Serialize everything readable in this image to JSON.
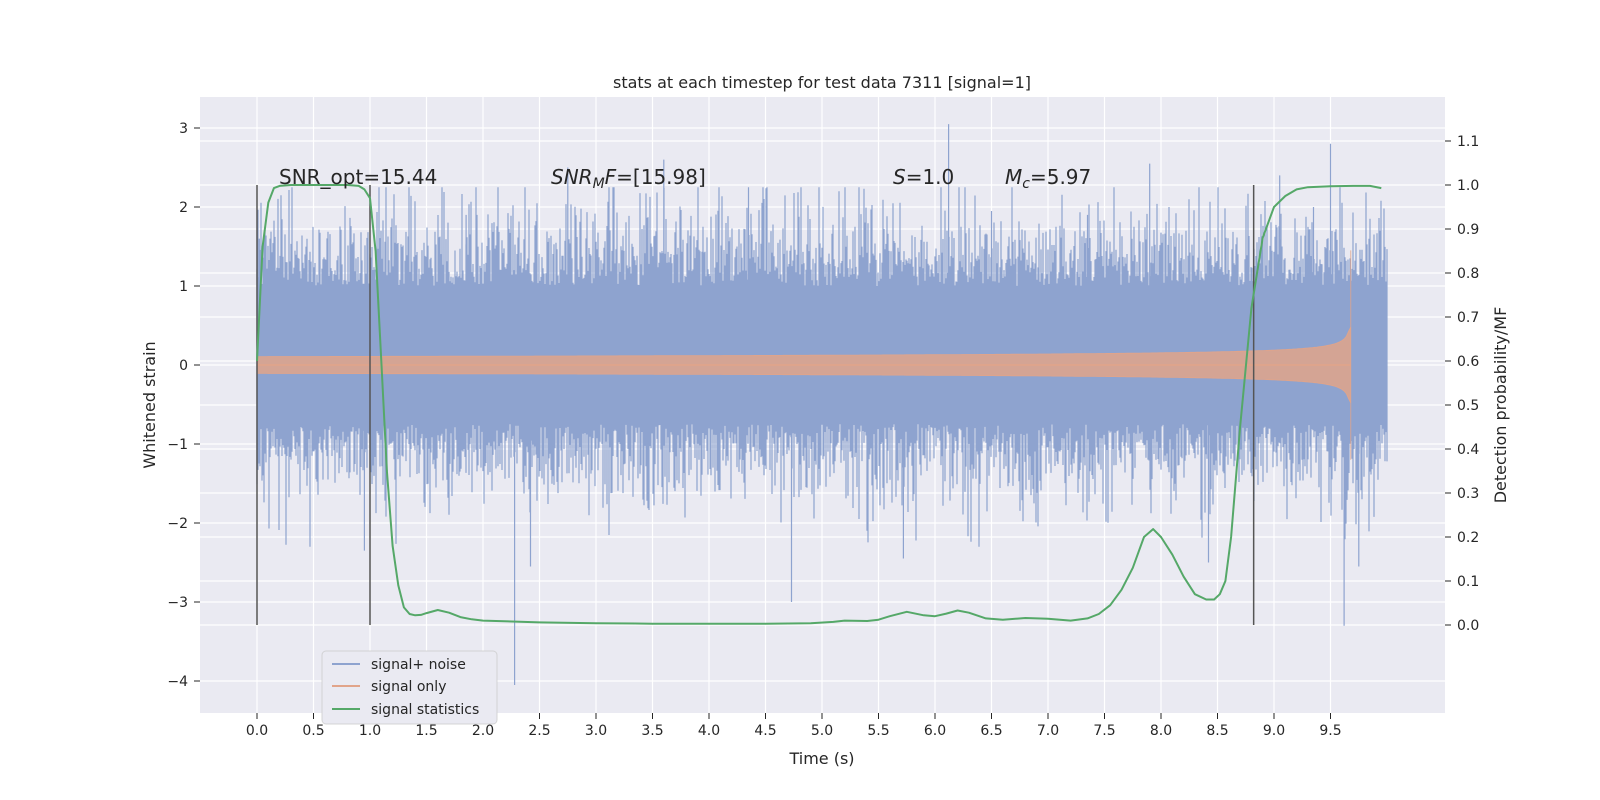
{
  "chart_data": {
    "type": "line",
    "title": "stats at each timestep for test data 7311 [signal=1]",
    "xlabel": "Time (s)",
    "ylabel_left": "Whitened strain",
    "ylabel_right": "Detection probability/MF",
    "xlim": [
      -0.5,
      10.5
    ],
    "ylim_left": [
      -4.4,
      3.4
    ],
    "ylim_right": [
      -0.2,
      1.2
    ],
    "x_ticks": [
      "0.0",
      "0.5",
      "1.0",
      "1.5",
      "2.0",
      "2.5",
      "3.0",
      "3.5",
      "4.0",
      "4.5",
      "5.0",
      "5.5",
      "6.0",
      "6.5",
      "7.0",
      "7.5",
      "8.0",
      "8.5",
      "9.0",
      "9.5"
    ],
    "y_ticks_left": [
      "−4",
      "−3",
      "−2",
      "−1",
      "0",
      "1",
      "2",
      "3"
    ],
    "y_ticks_right": [
      "0.0",
      "0.1",
      "0.2",
      "0.3",
      "0.4",
      "0.5",
      "0.6",
      "0.7",
      "0.8",
      "0.9",
      "1.0",
      "1.1"
    ],
    "grid": true,
    "legend_position": "bottom-left",
    "colors": {
      "noise": "#8ea3cf",
      "signal": "#e1a48a",
      "stats": "#55a868",
      "background": "#eaeaf2",
      "vline": "#555555"
    },
    "annotations": {
      "snr_opt": "SNR_opt=15.44",
      "snr_mf_sym": "SNR",
      "snr_mf_sub": "M",
      "snr_mf_rest": "F=[15.98]",
      "s_sym": "S",
      "s_rest": "=1.0",
      "mc_sym": "M",
      "mc_sub": "c",
      "mc_rest": "=5.97"
    },
    "vertical_lines_s": [
      0.0,
      1.0,
      8.82
    ],
    "series": [
      {
        "name": "signal+ noise",
        "key": "noise",
        "t_range": [
          0,
          10.0
        ],
        "envelope_typical": [
          -1.1,
          1.4
        ],
        "extremes": {
          "max": 3.05,
          "min": -4.05
        }
      },
      {
        "name": "signal only",
        "key": "signal",
        "t_range": [
          0,
          9.68
        ],
        "peak_amplitude": 1.45
      },
      {
        "name": "signal statistics",
        "key": "stats",
        "x": [
          0.0,
          0.05,
          0.1,
          0.15,
          0.2,
          0.3,
          0.4,
          0.5,
          0.6,
          0.7,
          0.8,
          0.9,
          0.95,
          1.0,
          1.05,
          1.1,
          1.15,
          1.2,
          1.25,
          1.3,
          1.35,
          1.4,
          1.45,
          1.5,
          1.6,
          1.7,
          1.8,
          1.9,
          2.0,
          2.5,
          3.0,
          3.5,
          4.0,
          4.5,
          4.9,
          5.1,
          5.2,
          5.4,
          5.5,
          5.6,
          5.75,
          5.9,
          6.0,
          6.1,
          6.2,
          6.3,
          6.45,
          6.6,
          6.8,
          7.0,
          7.2,
          7.35,
          7.45,
          7.55,
          7.65,
          7.75,
          7.85,
          7.93,
          8.0,
          8.1,
          8.2,
          8.3,
          8.4,
          8.47,
          8.52,
          8.57,
          8.62,
          8.7,
          8.8,
          8.9,
          9.0,
          9.1,
          9.2,
          9.3,
          9.5,
          9.7,
          9.85,
          9.95
        ],
        "y": [
          0.6,
          0.86,
          0.96,
          0.993,
          0.998,
          1.0,
          1.0,
          1.0,
          1.0,
          1.0,
          1.0,
          0.998,
          0.99,
          0.97,
          0.85,
          0.6,
          0.35,
          0.18,
          0.09,
          0.04,
          0.025,
          0.022,
          0.023,
          0.027,
          0.034,
          0.028,
          0.018,
          0.013,
          0.01,
          0.006,
          0.004,
          0.003,
          0.003,
          0.003,
          0.004,
          0.007,
          0.01,
          0.009,
          0.012,
          0.02,
          0.03,
          0.022,
          0.02,
          0.026,
          0.033,
          0.028,
          0.015,
          0.012,
          0.016,
          0.014,
          0.01,
          0.015,
          0.025,
          0.045,
          0.08,
          0.13,
          0.2,
          0.218,
          0.2,
          0.16,
          0.11,
          0.07,
          0.058,
          0.058,
          0.07,
          0.1,
          0.2,
          0.45,
          0.72,
          0.88,
          0.95,
          0.975,
          0.99,
          0.995,
          0.997,
          0.998,
          0.998,
          0.993
        ]
      }
    ]
  }
}
